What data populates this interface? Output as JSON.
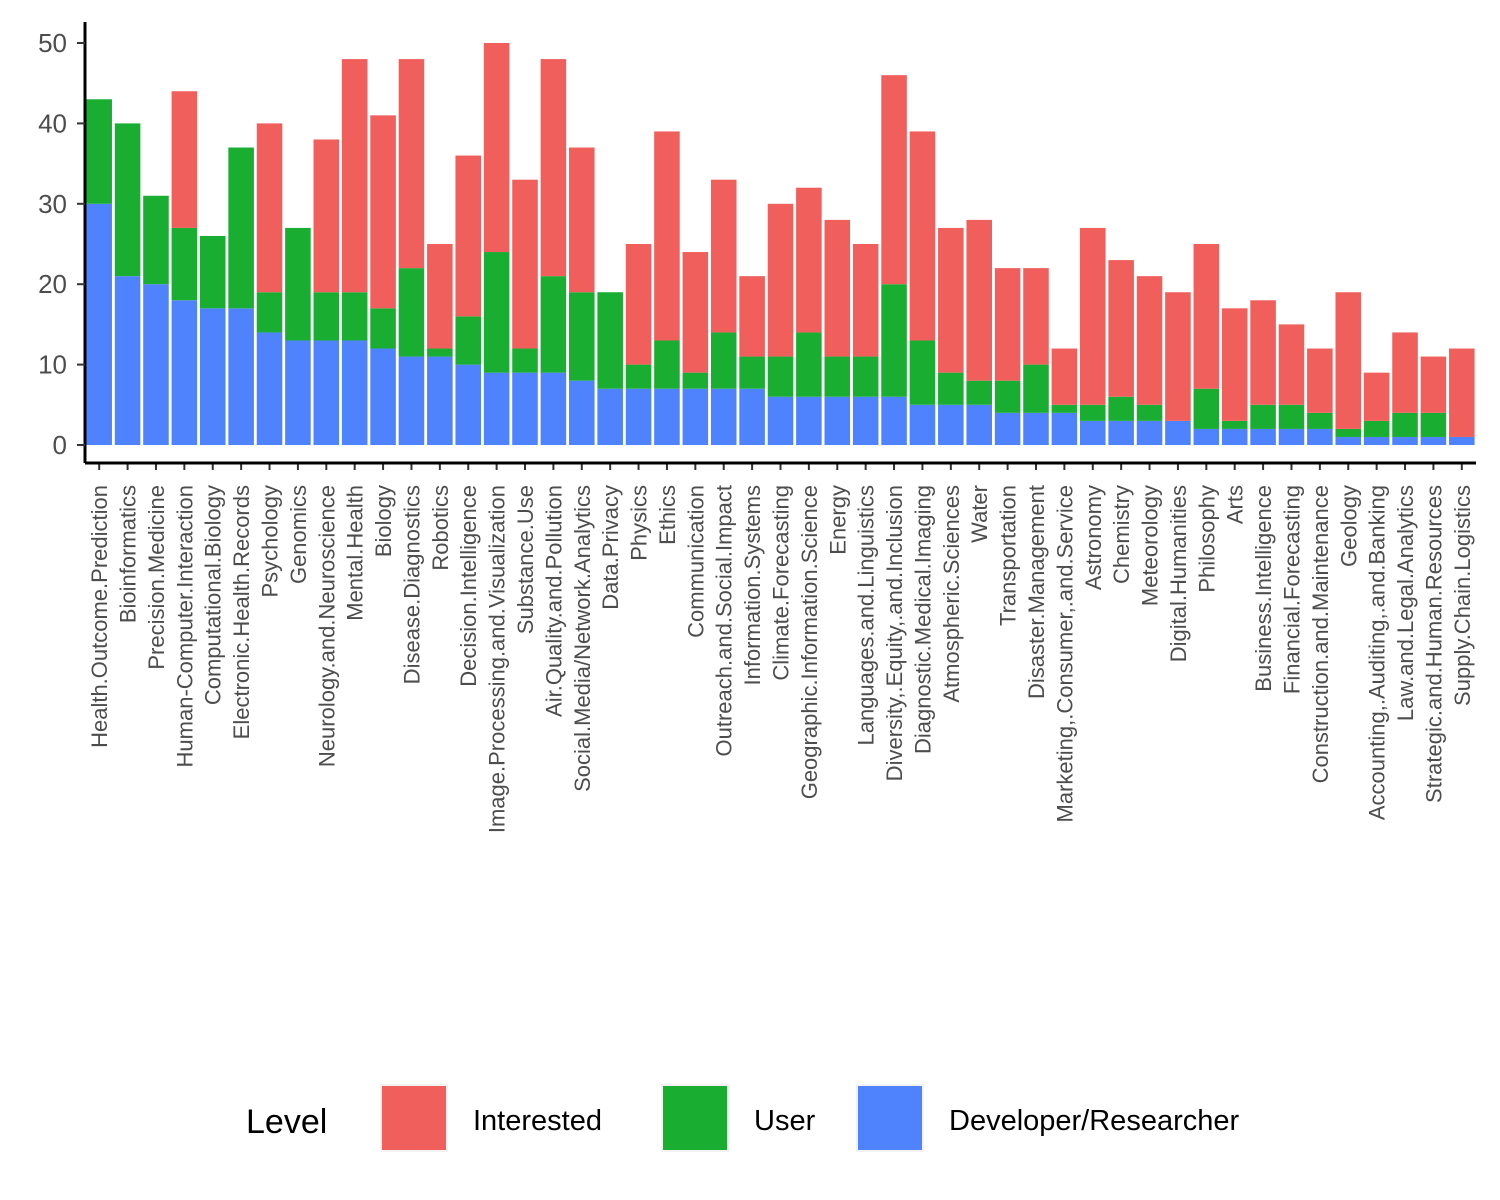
{
  "chart_data": {
    "type": "bar",
    "stacked": true,
    "title": "",
    "xlabel": "",
    "ylabel": "",
    "ylim": [
      0,
      52
    ],
    "yticks": [
      0,
      10,
      20,
      30,
      40,
      50
    ],
    "grid": false,
    "legend_position": "bottom",
    "legend_title": "Level",
    "categories": [
      "Health.Outcome.Prediction",
      "Bioinformatics",
      "Precision.Medicine",
      "Human-Computer.Interaction",
      "Computational.Biology",
      "Electronic.Health.Records",
      "Psychology",
      "Genomics",
      "Neurology.and.Neuroscience",
      "Mental.Health",
      "Biology",
      "Disease.Diagnostics",
      "Robotics",
      "Decision.Intelligence",
      "Image.Processing.and.Visualization",
      "Substance.Use",
      "Air.Quality.and.Pollution",
      "Social.Media/Network.Analytics",
      "Data.Privacy",
      "Physics",
      "Ethics",
      "Communication",
      "Outreach.and.Social.Impact",
      "Information.Systems",
      "Climate.Forecasting",
      "Geographic.Information.Science",
      "Energy",
      "Languages.and.Linguistics",
      "Diversity,.Equity,.and.Inclusion",
      "Diagnostic.Medical.Imaging",
      "Atmospheric.Sciences",
      "Water",
      "Transportation",
      "Disaster.Management",
      "Marketing,.Consumer,.and.Service",
      "Astronomy",
      "Chemistry",
      "Meteorology",
      "Digital.Humanities",
      "Philosophy",
      "Arts",
      "Business.Intelligence",
      "Financial.Forecasting",
      "Construction.and.Maintenance",
      "Geology",
      "Accounting,.Auditing,.and.Banking",
      "Law.and.Legal.Analytics",
      "Strategic.and.Human.Resources",
      "Supply.Chain.Logistics"
    ],
    "series": [
      {
        "name": "Developer/Researcher",
        "color": "#4F83FE",
        "values": [
          30,
          21,
          20,
          18,
          17,
          17,
          14,
          13,
          13,
          13,
          12,
          11,
          11,
          10,
          9,
          9,
          9,
          8,
          7,
          7,
          7,
          7,
          7,
          7,
          6,
          6,
          6,
          6,
          6,
          5,
          5,
          5,
          4,
          4,
          4,
          3,
          3,
          3,
          3,
          2,
          2,
          2,
          2,
          2,
          1,
          1,
          1,
          1,
          1
        ]
      },
      {
        "name": "User",
        "color": "#19AE31",
        "values": [
          13,
          19,
          11,
          9,
          9,
          20,
          5,
          14,
          6,
          6,
          5,
          11,
          1,
          6,
          15,
          3,
          12,
          11,
          12,
          3,
          6,
          2,
          7,
          4,
          5,
          8,
          5,
          5,
          14,
          8,
          4,
          3,
          4,
          6,
          1,
          2,
          3,
          2,
          0,
          5,
          1,
          3,
          3,
          2,
          1,
          2,
          3,
          3,
          0
        ]
      },
      {
        "name": "Interested",
        "color": "#F05F5B",
        "values": [
          0,
          0,
          0,
          17,
          0,
          0,
          21,
          0,
          19,
          29,
          24,
          26,
          13,
          20,
          26,
          21,
          27,
          18,
          0,
          15,
          26,
          15,
          19,
          10,
          19,
          18,
          17,
          14,
          26,
          26,
          18,
          20,
          14,
          12,
          7,
          22,
          17,
          16,
          16,
          18,
          14,
          13,
          10,
          8,
          17,
          6,
          10,
          7,
          11
        ]
      }
    ],
    "legend_order": [
      "Interested",
      "User",
      "Developer/Researcher"
    ]
  }
}
